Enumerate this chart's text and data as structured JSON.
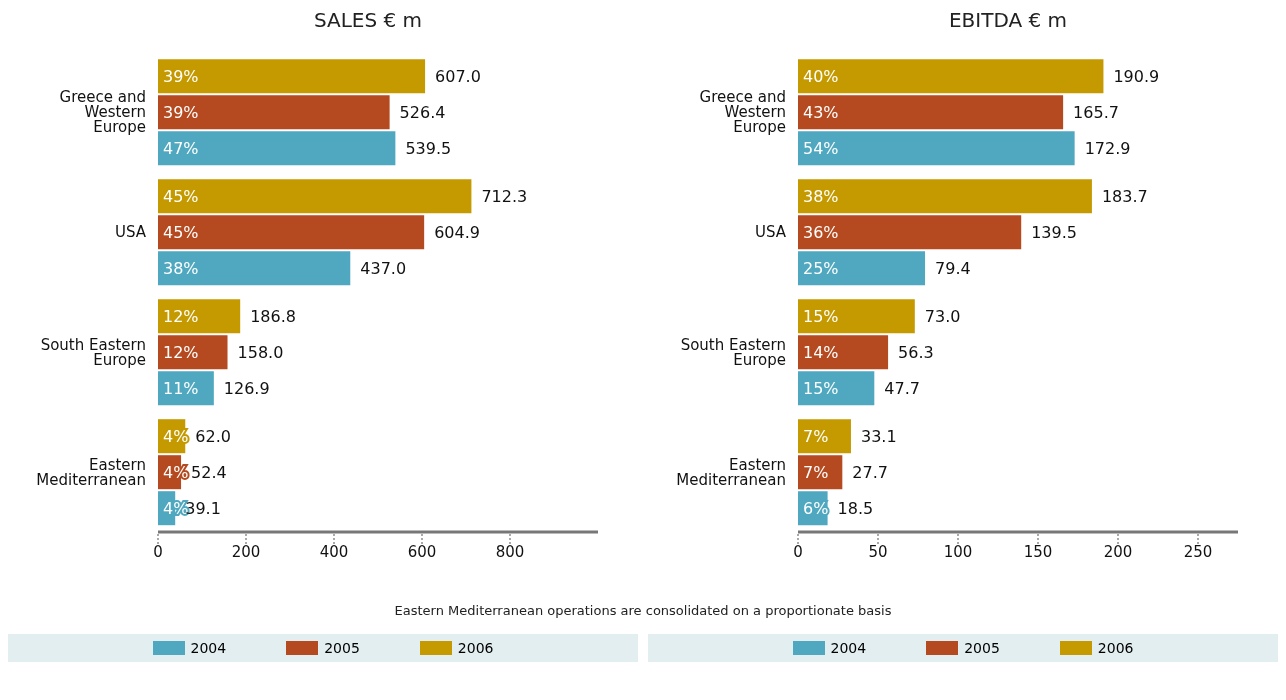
{
  "chart_data": [
    {
      "type": "bar",
      "orientation": "horizontal",
      "title": "SALES € m",
      "categories": [
        "Greece and Western Europe",
        "USA",
        "South Eastern Europe",
        "Eastern Mediterranean"
      ],
      "xlim": [
        0,
        1000
      ],
      "xticks": [
        0,
        200,
        400,
        600,
        800
      ],
      "grid": false,
      "legend": "bottom",
      "series": [
        {
          "name": "2004",
          "color": "#4fa8c0",
          "values": [
            539.5,
            437.0,
            126.9,
            39.1
          ],
          "value_labels": [
            "539.5",
            "437.0",
            "126.9",
            "39.1"
          ]
        },
        {
          "name": "2005",
          "color": "#b5491f",
          "values": [
            526.4,
            604.9,
            158.0,
            52.4
          ],
          "value_labels": [
            "526.4",
            "604.9",
            "158.0",
            "52.4"
          ]
        },
        {
          "name": "2006",
          "color": "#c49a00",
          "values": [
            607.0,
            712.3,
            186.8,
            62.0
          ],
          "value_labels": [
            "607.0",
            "712.3",
            "186.8",
            "62.0"
          ]
        }
      ],
      "annotations": [
        "39%",
        "39%",
        "47%",
        "45%",
        "45%",
        "38%",
        "12%",
        "12%",
        "11%",
        "4%",
        "4%",
        "4%",
        "Eastern Mediterranean operations are consolidated on a proportionate basis"
      ]
    },
    {
      "type": "bar",
      "orientation": "horizontal",
      "title": "EBITDA € m",
      "categories": [
        "Greece and Western Europe",
        "USA",
        "South Eastern Europe",
        "Eastern Mediterranean"
      ],
      "xlim": [
        0,
        275
      ],
      "xticks": [
        0,
        50,
        100,
        150,
        200,
        250
      ],
      "grid": false,
      "legend": "bottom",
      "series": [
        {
          "name": "2004",
          "color": "#4fa8c0",
          "values": [
            172.9,
            79.4,
            47.7,
            18.5
          ],
          "value_labels": [
            "172.9",
            "79.4",
            "47.7",
            "18.5"
          ]
        },
        {
          "name": "2005",
          "color": "#b5491f",
          "values": [
            165.7,
            139.5,
            56.3,
            27.7
          ],
          "value_labels": [
            "165.7",
            "139.5",
            "56.3",
            "27.7"
          ]
        },
        {
          "name": "2006",
          "color": "#c49a00",
          "values": [
            190.9,
            183.7,
            73.0,
            33.1
          ],
          "value_labels": [
            "190.9",
            "183.7",
            "73.0",
            "33.1"
          ]
        }
      ],
      "annotations": [
        "40%",
        "43%",
        "54%",
        "38%",
        "36%",
        "25%",
        "15%",
        "14%",
        "15%",
        "7%",
        "7%",
        "6%"
      ]
    }
  ]
}
